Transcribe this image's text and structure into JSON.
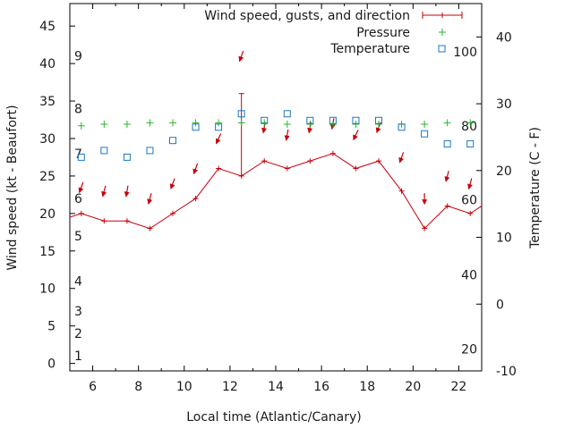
{
  "chart_data": {
    "type": "line",
    "xlabel": "Local time (Atlantic/Canary)",
    "ylabel_left": "Wind speed (kt - Beaufort)",
    "ylabel_right": "Temperature (C - F)",
    "xlim": [
      5,
      23
    ],
    "ylim_left": [
      -1,
      48
    ],
    "ylim_right": [
      -10,
      45
    ],
    "x_ticks": [
      "6",
      "8",
      "10",
      "12",
      "14",
      "16",
      "18",
      "20",
      "22"
    ],
    "y_left_ticks": [
      "0",
      "5",
      "10",
      "15",
      "20",
      "25",
      "30",
      "35",
      "40",
      "45"
    ],
    "y_right_ticks": [
      "-10",
      "0",
      "10",
      "20",
      "30",
      "40"
    ],
    "beaufort_labels": [
      {
        "label": "1",
        "kt": 1
      },
      {
        "label": "2",
        "kt": 4
      },
      {
        "label": "3",
        "kt": 7
      },
      {
        "label": "4",
        "kt": 11
      },
      {
        "label": "5",
        "kt": 17
      },
      {
        "label": "6",
        "kt": 22
      },
      {
        "label": "7",
        "kt": 28
      },
      {
        "label": "8",
        "kt": 34
      },
      {
        "label": "9",
        "kt": 41
      }
    ],
    "fahrenheit_labels": [
      {
        "label": "20",
        "c": -6.7
      },
      {
        "label": "40",
        "c": 4.4
      },
      {
        "label": "60",
        "c": 15.6
      },
      {
        "label": "80",
        "c": 26.7
      },
      {
        "label": "100",
        "c": 37.8
      }
    ],
    "legend": {
      "wind": "Wind speed, gusts, and direction",
      "pressure": "Pressure",
      "temperature": "Temperature"
    },
    "series": [
      {
        "name": "Wind speed",
        "x": [
          5,
          5.5,
          6.5,
          7.5,
          8.5,
          9.5,
          10.5,
          11.5,
          12.5,
          13.5,
          14.5,
          15.5,
          16.5,
          17.5,
          18.5,
          19.5,
          20.5,
          21.5,
          22.5,
          23
        ],
        "values": [
          19.5,
          20,
          19,
          19,
          18,
          20,
          22,
          26,
          25,
          27,
          26,
          27,
          28,
          26,
          27,
          23,
          18,
          21,
          20,
          21
        ]
      },
      {
        "name": "Gust",
        "x": [
          12.5
        ],
        "low": [
          25
        ],
        "high": [
          36
        ]
      },
      {
        "name": "Wind direction",
        "x": [
          5.5,
          6.5,
          7.5,
          8.5,
          9.5,
          10.5,
          11.5,
          12.5,
          13.5,
          14.5,
          15.5,
          16.5,
          17.5,
          18.5,
          19.5,
          20.5,
          21.5,
          22.5
        ],
        "kt": [
          23.5,
          23,
          23,
          22,
          24,
          26,
          30,
          41,
          31.5,
          30.5,
          31.5,
          32,
          30.5,
          31.5,
          27.5,
          22,
          25,
          24
        ],
        "dir_deg": [
          20,
          15,
          10,
          15,
          20,
          20,
          25,
          20,
          10,
          10,
          10,
          10,
          25,
          20,
          20,
          0,
          15,
          15
        ]
      },
      {
        "name": "Pressure",
        "x": [
          5.5,
          6.5,
          7.5,
          8.5,
          9.5,
          10.5,
          11.5,
          12.5,
          13.5,
          14.5,
          15.5,
          16.5,
          17.5,
          18.5,
          19.5,
          20.5,
          21.5,
          22.5
        ],
        "values_kt_scale": [
          31.7,
          31.9,
          31.9,
          32.1,
          32.1,
          32.1,
          32.1,
          32.1,
          32.1,
          31.9,
          31.9,
          31.9,
          31.9,
          31.9,
          31.9,
          31.9,
          32.1,
          32.1
        ]
      },
      {
        "name": "Temperature",
        "x": [
          5.5,
          6.5,
          7.5,
          8.5,
          9.5,
          10.5,
          11.5,
          12.5,
          13.5,
          14.5,
          15.5,
          16.5,
          17.5,
          18.5,
          19.5,
          20.5,
          21.5,
          22.5
        ],
        "values": [
          22,
          23,
          22,
          23,
          24.5,
          26.5,
          26.5,
          28.5,
          27.5,
          28.5,
          27.5,
          27.5,
          27.5,
          27.5,
          26.5,
          25.5,
          24,
          24
        ]
      }
    ],
    "colors": {
      "wind": "#c8000a",
      "pressure": "#2bb52b",
      "temperature": "#1a78c2",
      "text": "#1a1a1a"
    }
  }
}
